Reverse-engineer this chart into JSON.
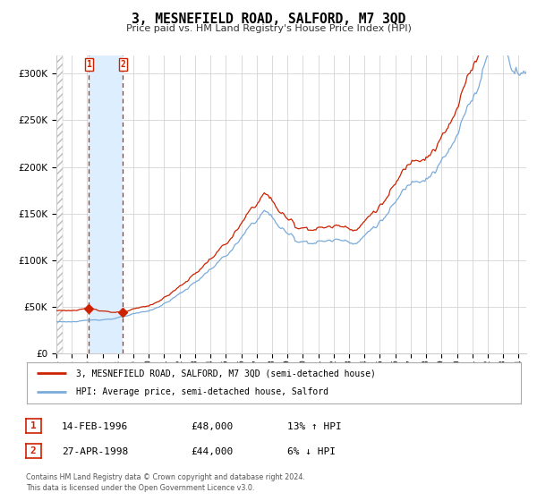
{
  "title": "3, MESNEFIELD ROAD, SALFORD, M7 3QD",
  "subtitle": "Price paid vs. HM Land Registry's House Price Index (HPI)",
  "legend_line1": "3, MESNEFIELD ROAD, SALFORD, M7 3QD (semi-detached house)",
  "legend_line2": "HPI: Average price, semi-detached house, Salford",
  "sale1_date": "14-FEB-1996",
  "sale1_price": 48000,
  "sale1_hpi": "13% ↑ HPI",
  "sale1_year": 1996.12,
  "sale2_date": "27-APR-1998",
  "sale2_price": 44000,
  "sale2_hpi": "6% ↓ HPI",
  "sale2_year": 1998.32,
  "footnote1": "Contains HM Land Registry data © Crown copyright and database right 2024.",
  "footnote2": "This data is licensed under the Open Government Licence v3.0.",
  "hpi_color": "#7aabdb",
  "price_color": "#cc2200",
  "sale_marker_color": "#cc2200",
  "vline_color": "#cc2200",
  "highlight_color": "#ddeeff",
  "ylim_max": 320000,
  "ylim_min": 0,
  "xmin": 1994.0,
  "xmax": 2024.5
}
